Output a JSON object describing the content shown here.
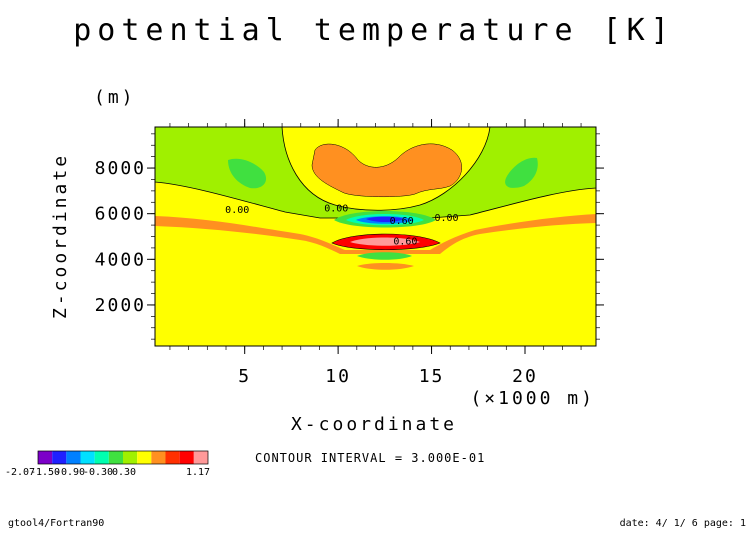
{
  "chart_data": {
    "type": "heatmap",
    "title": "potential temperature [K]",
    "xlabel": "X-coordinate",
    "x_unit": "(×1000 m)",
    "ylabel": "Z-coordinate",
    "y_unit": "(m)",
    "xlim": [
      0.2,
      23.8
    ],
    "ylim": [
      200,
      9800
    ],
    "x_ticks": [
      5,
      10,
      15,
      20
    ],
    "y_ticks": [
      2000,
      4000,
      6000,
      8000
    ],
    "grid": false,
    "contour_interval_text": "CONTOUR INTERVAL = 3.000E-01",
    "contour_labels": [
      {
        "text": "0.00",
        "x": 4.6,
        "y": 6030
      },
      {
        "text": "0.00",
        "x": 9.9,
        "y": 6100
      },
      {
        "text": "0.00",
        "x": 15.8,
        "y": 5670
      },
      {
        "text": "0.60",
        "x": 13.4,
        "y": 5550
      },
      {
        "text": "0.60",
        "x": 13.6,
        "y": 4650
      }
    ],
    "legend": {
      "bins": 12,
      "colors": [
        "#7c00c8",
        "#2020ff",
        "#0080ff",
        "#00e0ff",
        "#00ffb0",
        "#40e040",
        "#a0f000",
        "#ffff00",
        "#ff9020",
        "#ff3000",
        "#ff0000",
        "#ff9999"
      ],
      "tick_labels": [
        "-2.07",
        "-1.50",
        "-0.90",
        "-0.30",
        "0.30",
        "",
        "1.17"
      ]
    },
    "regions": [
      {
        "name": "background-yellow",
        "value": 0.15,
        "color": "#ffff00"
      },
      {
        "name": "upper-green",
        "value": -0.15,
        "color": "#a0f000"
      },
      {
        "name": "green-cell-left",
        "value": -0.45,
        "color": "#40e040",
        "x": 4.8,
        "y": 8300
      },
      {
        "name": "green-cell-right",
        "value": -0.45,
        "color": "#40e040",
        "x": 20.2,
        "y": 8300
      },
      {
        "name": "orange-band",
        "value": 0.45,
        "color": "#ff9020"
      },
      {
        "name": "orange-cap",
        "value": 0.45,
        "color": "#ff9020",
        "x": 12.5,
        "y": 8000
      },
      {
        "name": "cold-core",
        "value": -2.07,
        "color": "#2020ff",
        "x": 12.5,
        "y": 5800
      },
      {
        "name": "warm-core",
        "value": 1.17,
        "color": "#ff0000",
        "x": 12.5,
        "y": 4800
      },
      {
        "name": "lower-green",
        "value": -0.15,
        "color": "#40e040",
        "x": 12.5,
        "y": 4200
      },
      {
        "name": "lower-orange",
        "value": 0.45,
        "color": "#ff9020",
        "x": 12.5,
        "y": 3750
      }
    ]
  },
  "footer": {
    "left": "gtool4/Fortran90",
    "right": "date: 4/ 1/ 6 page: 1"
  }
}
